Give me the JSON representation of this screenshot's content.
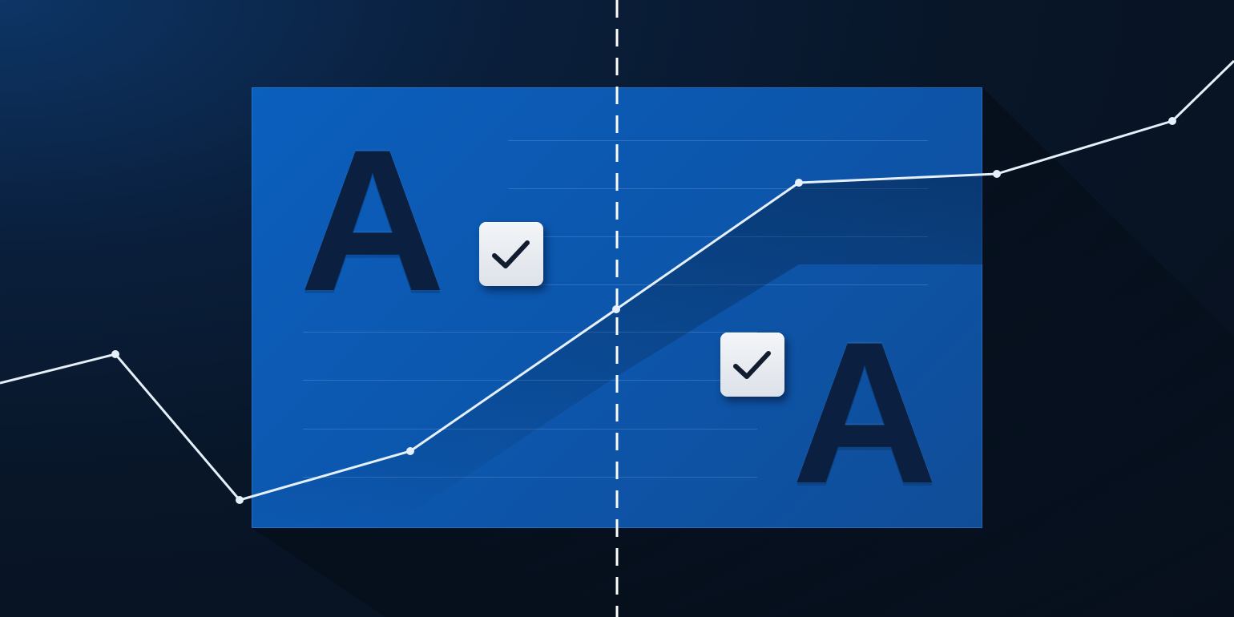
{
  "illustration": {
    "variant_a_letter": "A",
    "variant_b_letter": "A",
    "icons": [
      "checkmark-icon",
      "checkmark-icon"
    ],
    "colors": {
      "background_dark": "#070f1c",
      "background_glow": "#0d3566",
      "card_blue": "#0b5fbd",
      "letter": "#0b1f40",
      "line": "#e6f0fa",
      "checkbox": "#eef1f5",
      "checkmark": "#111c2e"
    }
  }
}
